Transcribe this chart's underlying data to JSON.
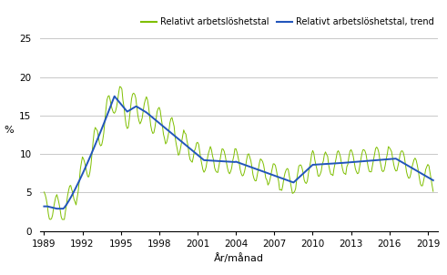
{
  "xlabel": "År/månad",
  "ylabel": "%",
  "ylim": [
    0,
    25
  ],
  "yticks": [
    0,
    5,
    10,
    15,
    20,
    25
  ],
  "xticks": [
    1989,
    1992,
    1995,
    1998,
    2001,
    2004,
    2007,
    2010,
    2013,
    2016,
    2019
  ],
  "line_color": "#7FBF00",
  "trend_color": "#2255BB",
  "legend_line1": "Relativt arbetslöshetstal",
  "legend_line2": "Relativt arbetslöshetstal, trend",
  "background_color": "#ffffff",
  "grid_color": "#c8c8c8"
}
